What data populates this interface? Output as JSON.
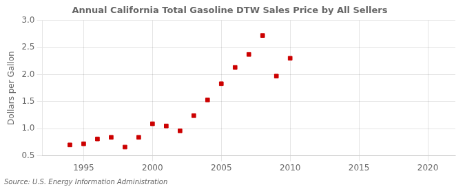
{
  "chart_data": {
    "type": "scatter",
    "title": "Annual California Total Gasoline DTW Sales Price by All Sellers",
    "ylabel": "Dollars per Gallon",
    "source": "Source: U.S. Energy Information Administration",
    "x": [
      1994,
      1995,
      1996,
      1997,
      1998,
      1999,
      2000,
      2001,
      2002,
      2003,
      2004,
      2005,
      2006,
      2007,
      2008,
      2009,
      2010
    ],
    "values": [
      0.7,
      0.72,
      0.81,
      0.84,
      0.66,
      0.84,
      1.09,
      1.05,
      0.96,
      1.24,
      1.53,
      1.83,
      2.13,
      2.37,
      2.72,
      1.97,
      2.3
    ],
    "color": "#cc0000",
    "marker": "square",
    "xlim": [
      1992,
      2022
    ],
    "xticks": [
      1995,
      2000,
      2005,
      2010,
      2015,
      2020
    ],
    "ylim": [
      0.5,
      3.0
    ],
    "yticks": [
      0.5,
      {
        "value": 1.0,
        "label": "1.0"
      },
      1.5,
      {
        "value": 2.0,
        "label": "2.0"
      },
      2.5,
      {
        "value": 3.0,
        "label": "3.0"
      }
    ],
    "grid": true
  }
}
